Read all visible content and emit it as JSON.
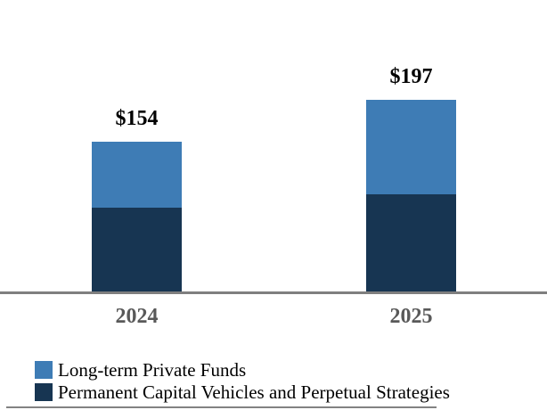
{
  "chart_data": {
    "type": "bar",
    "stacked": true,
    "title": "",
    "xlabel": "",
    "ylabel": "",
    "value_axis_visible": false,
    "grid": false,
    "categories": [
      "2024",
      "2025"
    ],
    "series": [
      {
        "name": "Permanent Capital Vehicles and Perpetual Strategies",
        "color": "#173552",
        "values": [
          86,
          100
        ]
      },
      {
        "name": "Long-term Private Funds",
        "color": "#3E7CB5",
        "values": [
          68,
          97
        ]
      }
    ],
    "totals": [
      154,
      197
    ],
    "total_labels": [
      "$154",
      "$197"
    ],
    "legend": {
      "position": "bottom-left",
      "order": [
        "Long-term Private Funds",
        "Permanent Capital Vehicles and Perpetual Strategies"
      ]
    },
    "axis": {
      "baseline_color": "#7F7F7F",
      "category_label_color": "#595959",
      "value_label_color": "#000000"
    }
  }
}
